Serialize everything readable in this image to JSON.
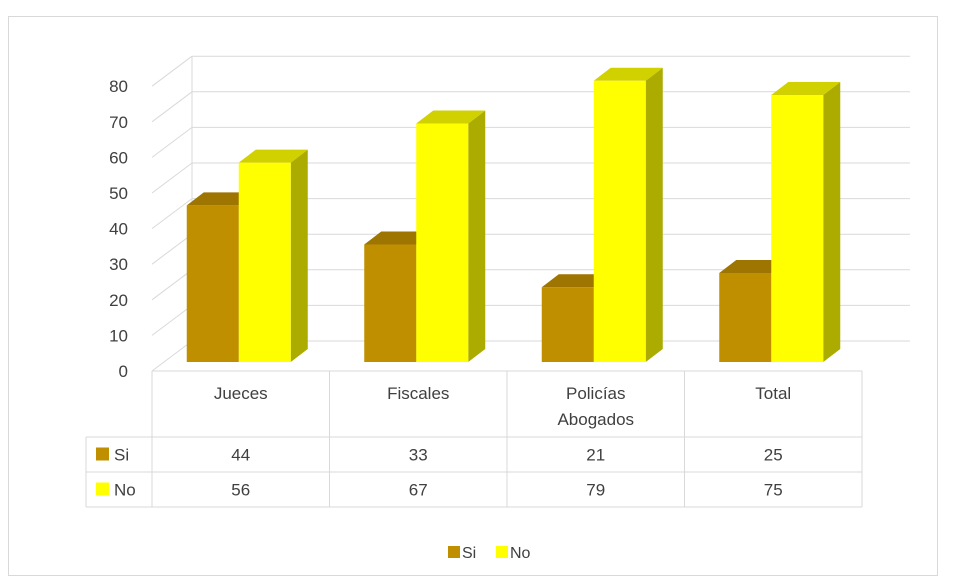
{
  "chart_data": {
    "type": "bar",
    "categories": [
      [
        "Jueces"
      ],
      [
        "Fiscales"
      ],
      [
        "Policías",
        "Abogados"
      ],
      [
        "Total"
      ]
    ],
    "series": [
      {
        "name": "Si",
        "values": [
          44,
          33,
          21,
          25
        ],
        "color": "#bf8f00"
      },
      {
        "name": "No",
        "values": [
          56,
          67,
          79,
          75
        ],
        "color": "#ffff00"
      }
    ],
    "yticks": [
      "0",
      "10",
      "20",
      "30",
      "40",
      "50",
      "60",
      "70",
      "80"
    ],
    "ylim": [
      0,
      80
    ],
    "gridlines": true,
    "three_d": true,
    "data_table": true,
    "legend_position": "bottom"
  }
}
